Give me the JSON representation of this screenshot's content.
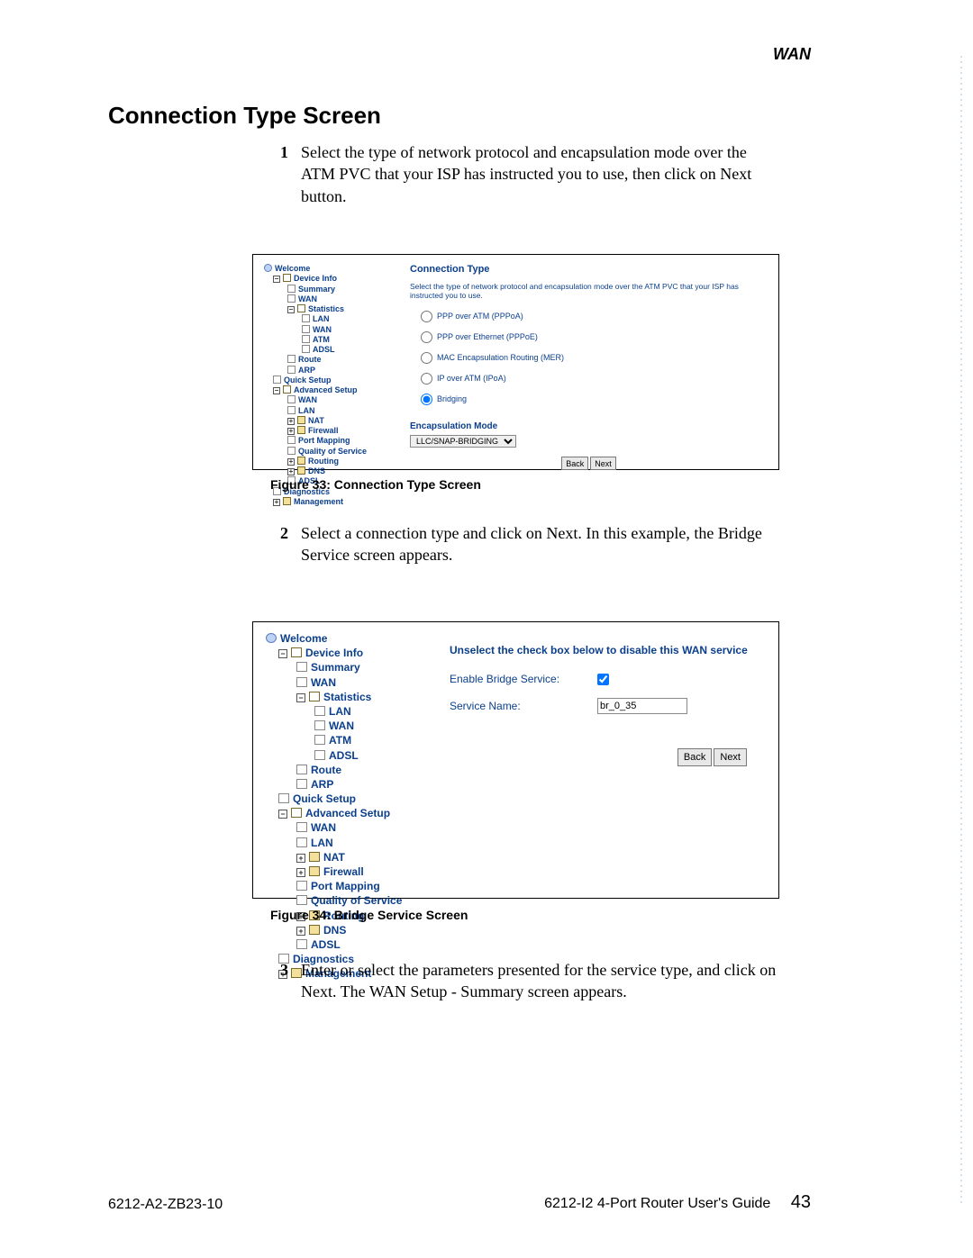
{
  "header_label": "WAN",
  "heading": "Connection Type Screen",
  "step1_num": "1",
  "step1_text": "Select the type of network protocol and encapsulation mode over the ATM PVC that your ISP has instructed you to use, then click on Next button.",
  "caption1": "Figure 33: Connection Type Screen",
  "step2_num": "2",
  "step2_text": "Select a connection type and click on Next. In this example, the Bridge Service screen appears.",
  "caption2": "Figure 34: Bridge Service Screen",
  "step3_num": "3",
  "step3_text": "Enter or select the parameters presented for the service type, and click on Next. The WAN Setup - Summary screen appears.",
  "footer_left": "6212-A2-ZB23-10",
  "footer_right_text": "6212-I2 4-Port Router User's Guide",
  "page_num": "43",
  "tree_items": {
    "welcome": "Welcome",
    "device_info": "Device Info",
    "summary": "Summary",
    "wan": "WAN",
    "statistics": "Statistics",
    "lan": "LAN",
    "stat_wan": "WAN",
    "atm": "ATM",
    "adsl": "ADSL",
    "route": "Route",
    "arp": "ARP",
    "quick_setup": "Quick Setup",
    "advanced_setup": "Advanced Setup",
    "adv_wan": "WAN",
    "adv_lan": "LAN",
    "nat": "NAT",
    "firewall": "Firewall",
    "port_mapping": "Port Mapping",
    "qos": "Quality of Service",
    "routing": "Routing",
    "dns": "DNS",
    "adv_adsl": "ADSL",
    "diagnostics": "Diagnostics",
    "management": "Management"
  },
  "fig1": {
    "title": "Connection Type",
    "intro": "Select the type of network protocol and encapsulation mode over the ATM PVC that your ISP has instructed you to use.",
    "radios": [
      "PPP over ATM (PPPoA)",
      "PPP over Ethernet (PPPoE)",
      "MAC Encapsulation Routing (MER)",
      "IP over ATM (IPoA)",
      "Bridging"
    ],
    "selected_index": 4,
    "encap_label": "Encapsulation Mode",
    "encap_value": "LLC/SNAP-BRIDGING",
    "back": "Back",
    "next": "Next"
  },
  "fig2": {
    "headline": "Unselect the check box below to disable this WAN service",
    "enable_label": "Enable Bridge Service:",
    "enable_checked": true,
    "service_name_label": "Service Name:",
    "service_name_value": "br_0_35",
    "back": "Back",
    "next": "Next"
  }
}
